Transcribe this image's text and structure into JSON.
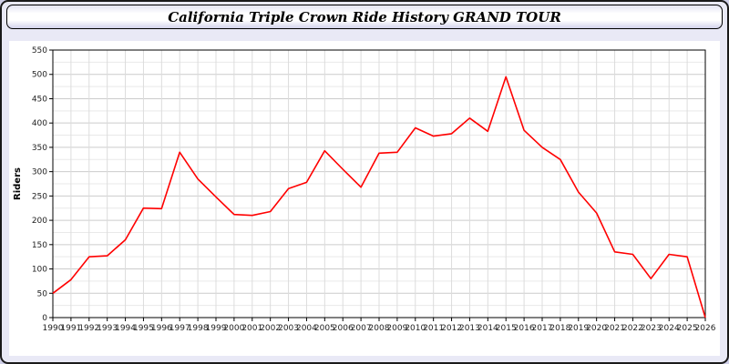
{
  "title_bar": {
    "title": "California Triple Crown Ride History GRAND TOUR"
  },
  "chart_data": {
    "type": "line",
    "title": "California Triple Crown Ride History GRAND TOUR",
    "xlabel": "",
    "ylabel": "Riders",
    "ylim": [
      0,
      550
    ],
    "ytick_step": 50,
    "grid": true,
    "legend_position": "none",
    "line_color": "#ff0000",
    "x": [
      1990,
      1991,
      1992,
      1993,
      1994,
      1995,
      1996,
      1997,
      1998,
      1999,
      2000,
      2001,
      2002,
      2003,
      2004,
      2005,
      2006,
      2007,
      2008,
      2009,
      2010,
      2011,
      2012,
      2013,
      2014,
      2015,
      2016,
      2017,
      2018,
      2019,
      2020,
      2021,
      2022,
      2023,
      2024,
      2025,
      2026
    ],
    "series": [
      {
        "name": "Riders",
        "values": [
          50,
          78,
          125,
          127,
          160,
          225,
          224,
          340,
          285,
          248,
          212,
          210,
          218,
          265,
          278,
          343,
          305,
          268,
          338,
          340,
          390,
          373,
          378,
          410,
          383,
          495,
          385,
          350,
          325,
          258,
          215,
          135,
          130,
          80,
          130,
          125,
          0
        ]
      }
    ]
  },
  "colors": {
    "page_background": "#e9e9f6",
    "chart_background": "#ffffff",
    "plot_border": "#000000",
    "grid_major": "#cccccc",
    "grid_minor": "#e9e9e9",
    "line": "#ff0000",
    "tick_label": "#222222"
  }
}
